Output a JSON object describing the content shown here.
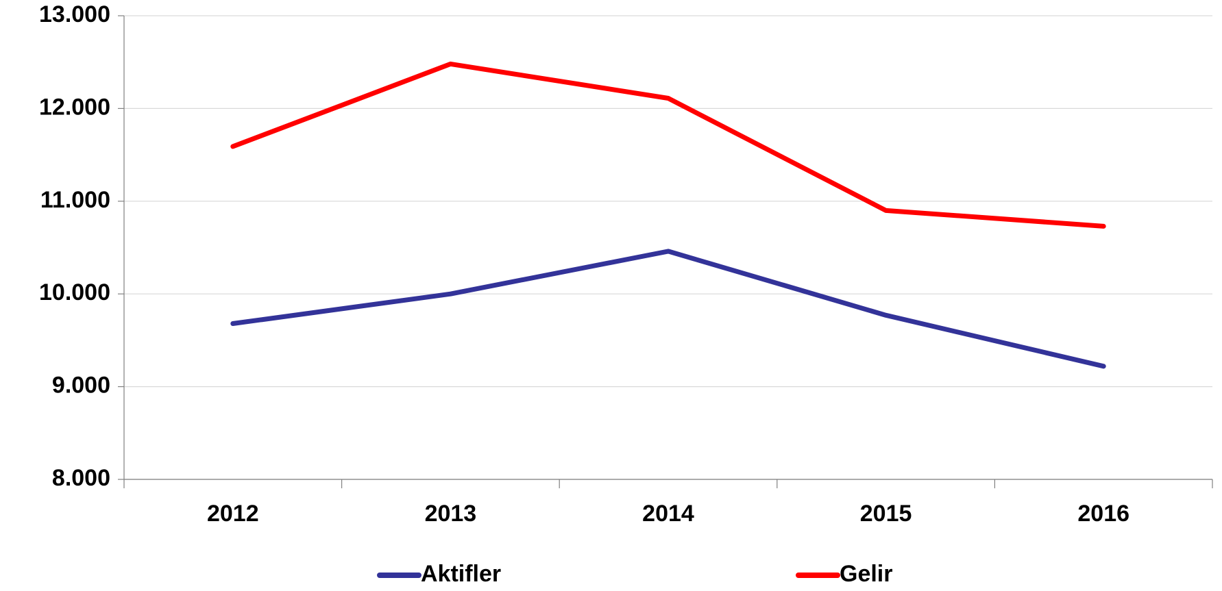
{
  "chart_data": {
    "type": "line",
    "categories": [
      "2012",
      "2013",
      "2014",
      "2015",
      "2016"
    ],
    "series": [
      {
        "name": "Aktifler",
        "color": "#333399",
        "values": [
          9680,
          10000,
          10460,
          9770,
          9220
        ]
      },
      {
        "name": "Gelir",
        "color": "#ff0000",
        "values": [
          11590,
          12480,
          12110,
          10900,
          10730
        ]
      }
    ],
    "ylim": [
      8000,
      13000
    ],
    "yticks": [
      {
        "value": 8000,
        "label": "8.000"
      },
      {
        "value": 9000,
        "label": "9.000"
      },
      {
        "value": 10000,
        "label": "10.000"
      },
      {
        "value": 11000,
        "label": "11.000"
      },
      {
        "value": 12000,
        "label": "12.000"
      },
      {
        "value": 13000,
        "label": "13.000"
      }
    ],
    "grid": true,
    "legend": "bottom"
  }
}
